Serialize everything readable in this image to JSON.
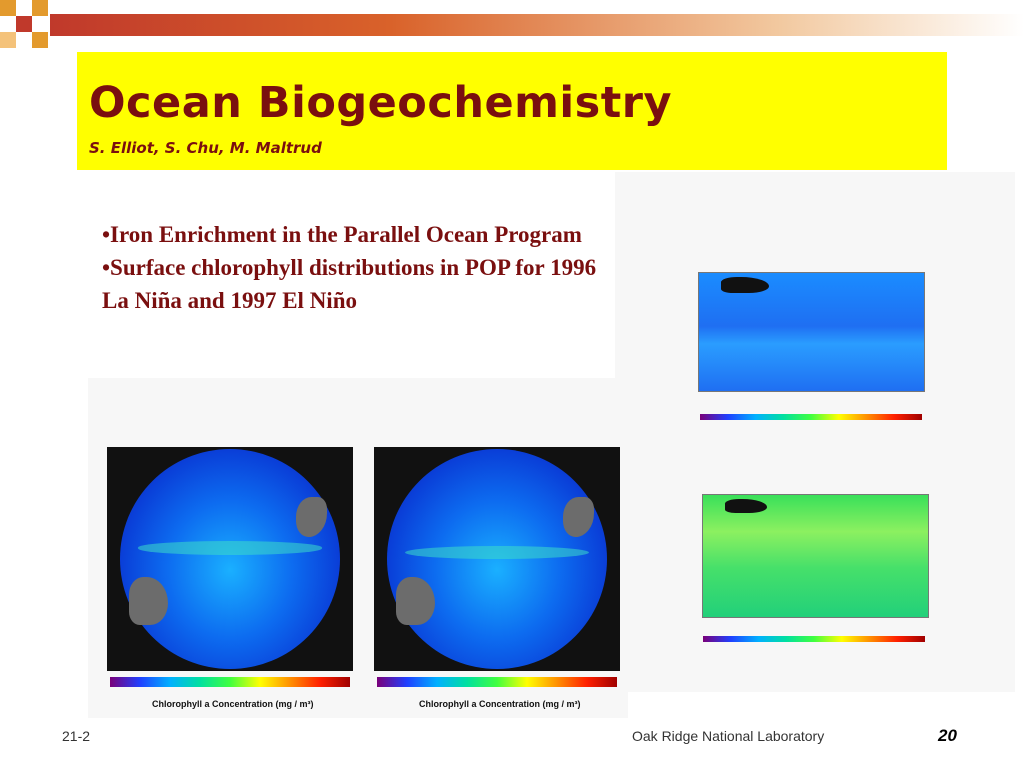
{
  "title": "Ocean Biogeochemistry",
  "authors": "S. Elliot, S. Chu, M. Maltrud",
  "bullets": [
    "•Iron Enrichment in the Parallel Ocean Program",
    "•Surface chlorophyll distributions in POP for 1996 La Niña and 1997 El Niño"
  ],
  "globe_colorbar_label": "Chlorophyll a Concentration  (mg / m³)",
  "footer": {
    "date": "21-2",
    "organization": "Oak Ridge National Laboratory",
    "page": "20"
  },
  "colors": {
    "title_background": "#ffff00",
    "title_text": "#7a0f0f",
    "accent": "#c0392b"
  }
}
